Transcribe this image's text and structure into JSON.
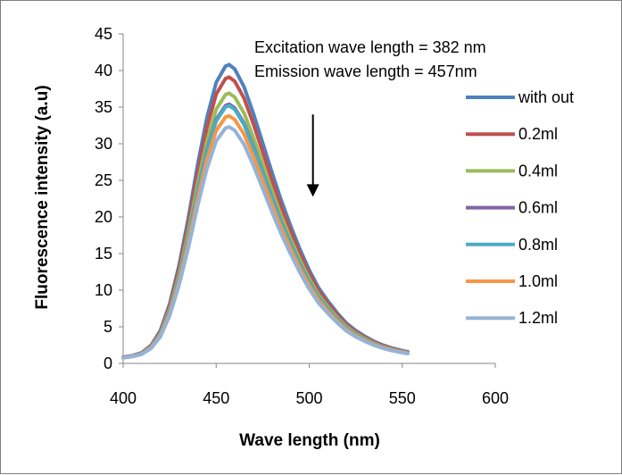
{
  "chart_data": {
    "type": "line",
    "xlabel": "Wave length (nm)",
    "ylabel": "Fluorescence intensity (a.u)",
    "xlim": [
      400,
      600
    ],
    "ylim": [
      0,
      45
    ],
    "xticks": [
      "400",
      "450",
      "500",
      "550",
      "600"
    ],
    "yticks": [
      "0",
      "5",
      "10",
      "15",
      "20",
      "25",
      "30",
      "35",
      "40",
      "45"
    ],
    "annotations": [
      "Excitation wave length = 382 nm",
      "Emission wave length = 457nm"
    ],
    "grid": false,
    "legend_position": "right",
    "x": [
      400,
      405,
      410,
      415,
      420,
      425,
      430,
      435,
      440,
      445,
      450,
      455,
      457,
      460,
      465,
      470,
      475,
      480,
      485,
      490,
      495,
      500,
      505,
      510,
      515,
      520,
      525,
      530,
      535,
      540,
      545,
      550,
      553
    ],
    "base_shape": [
      0.01,
      0.015,
      0.025,
      0.05,
      0.1,
      0.19,
      0.32,
      0.48,
      0.66,
      0.82,
      0.94,
      0.995,
      1.0,
      0.985,
      0.925,
      0.835,
      0.735,
      0.635,
      0.54,
      0.455,
      0.375,
      0.305,
      0.245,
      0.2,
      0.16,
      0.125,
      0.1,
      0.08,
      0.063,
      0.05,
      0.04,
      0.032,
      0.028
    ],
    "series": [
      {
        "name": "with out",
        "peak": 40.8,
        "color": "#4f81bd"
      },
      {
        "name": "0.2ml",
        "peak": 39.1,
        "color": "#c0504d"
      },
      {
        "name": "0.4ml",
        "peak": 36.9,
        "color": "#9bbb59"
      },
      {
        "name": "0.6ml",
        "peak": 35.4,
        "color": "#8064a2"
      },
      {
        "name": "0.8ml",
        "peak": 35.2,
        "color": "#4bacc6"
      },
      {
        "name": "1.0ml",
        "peak": 33.8,
        "color": "#f79646"
      },
      {
        "name": "1.2ml",
        "peak": 32.3,
        "color": "#95b3d7"
      }
    ],
    "arrow": {
      "x": 502,
      "y_from": 34,
      "y_to": 23
    }
  }
}
